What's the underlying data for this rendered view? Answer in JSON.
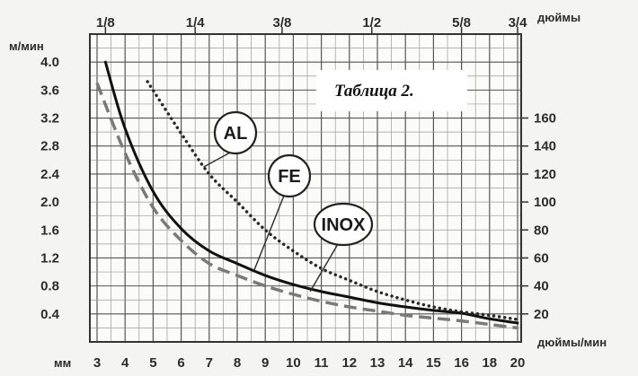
{
  "chart_data": {
    "type": "line",
    "title": "Таблица 2.",
    "top_unit": "дюймы",
    "left_unit": "м/мин",
    "right_unit": "дюймы/мин",
    "bottom_unit": "мм",
    "x_ticks": [
      3,
      4,
      5,
      6,
      7,
      8,
      9,
      10,
      11,
      12,
      13,
      14,
      15,
      16,
      18,
      20
    ],
    "top_ticks": [
      {
        "label": "1/8",
        "x": 3.3
      },
      {
        "label": "1/4",
        "x": 6.5
      },
      {
        "label": "3/8",
        "x": 9.6
      },
      {
        "label": "1/2",
        "x": 12.8
      },
      {
        "label": "5/8",
        "x": 16
      },
      {
        "label": "3/4",
        "x": 20
      }
    ],
    "left_ticks": [
      "0.4",
      "0.8",
      "1.2",
      "1.6",
      "2.0",
      "2.4",
      "2.8",
      "3.2",
      "3.6",
      "4.0"
    ],
    "right_ticks": [
      20,
      40,
      60,
      80,
      100,
      120,
      140,
      160
    ],
    "ylim": [
      0,
      4.4
    ],
    "series": [
      {
        "name": "FE",
        "style": "solid",
        "color": "#111111",
        "x": [
          3.3,
          4,
          5,
          6,
          7,
          8,
          9,
          10,
          11,
          12,
          13,
          14,
          15,
          16,
          18,
          20
        ],
        "y": [
          4.0,
          3.05,
          2.15,
          1.62,
          1.3,
          1.12,
          0.95,
          0.82,
          0.72,
          0.64,
          0.56,
          0.5,
          0.45,
          0.41,
          0.33,
          0.27
        ]
      },
      {
        "name": "AL",
        "style": "dotted",
        "color": "#2a2a2a",
        "x": [
          4.8,
          6,
          7,
          8,
          9,
          10,
          11,
          12,
          13,
          14,
          15,
          16,
          18,
          20
        ],
        "y": [
          3.72,
          2.98,
          2.4,
          2.0,
          1.6,
          1.3,
          1.05,
          0.88,
          0.72,
          0.6,
          0.5,
          0.43,
          0.38,
          0.32
        ]
      },
      {
        "name": "INOX",
        "style": "dashed",
        "color": "#7a7a7a",
        "x": [
          3,
          4,
          5,
          6,
          7,
          8,
          9,
          10,
          11,
          12,
          13,
          14,
          15,
          16,
          18,
          20
        ],
        "y": [
          3.7,
          2.7,
          1.92,
          1.45,
          1.12,
          0.95,
          0.8,
          0.68,
          0.58,
          0.5,
          0.44,
          0.38,
          0.34,
          0.3,
          0.25,
          0.2
        ]
      }
    ],
    "labels": [
      {
        "text": "AL",
        "series": "AL"
      },
      {
        "text": "FE",
        "series": "FE"
      },
      {
        "text": "INOX",
        "series": "INOX"
      }
    ]
  }
}
